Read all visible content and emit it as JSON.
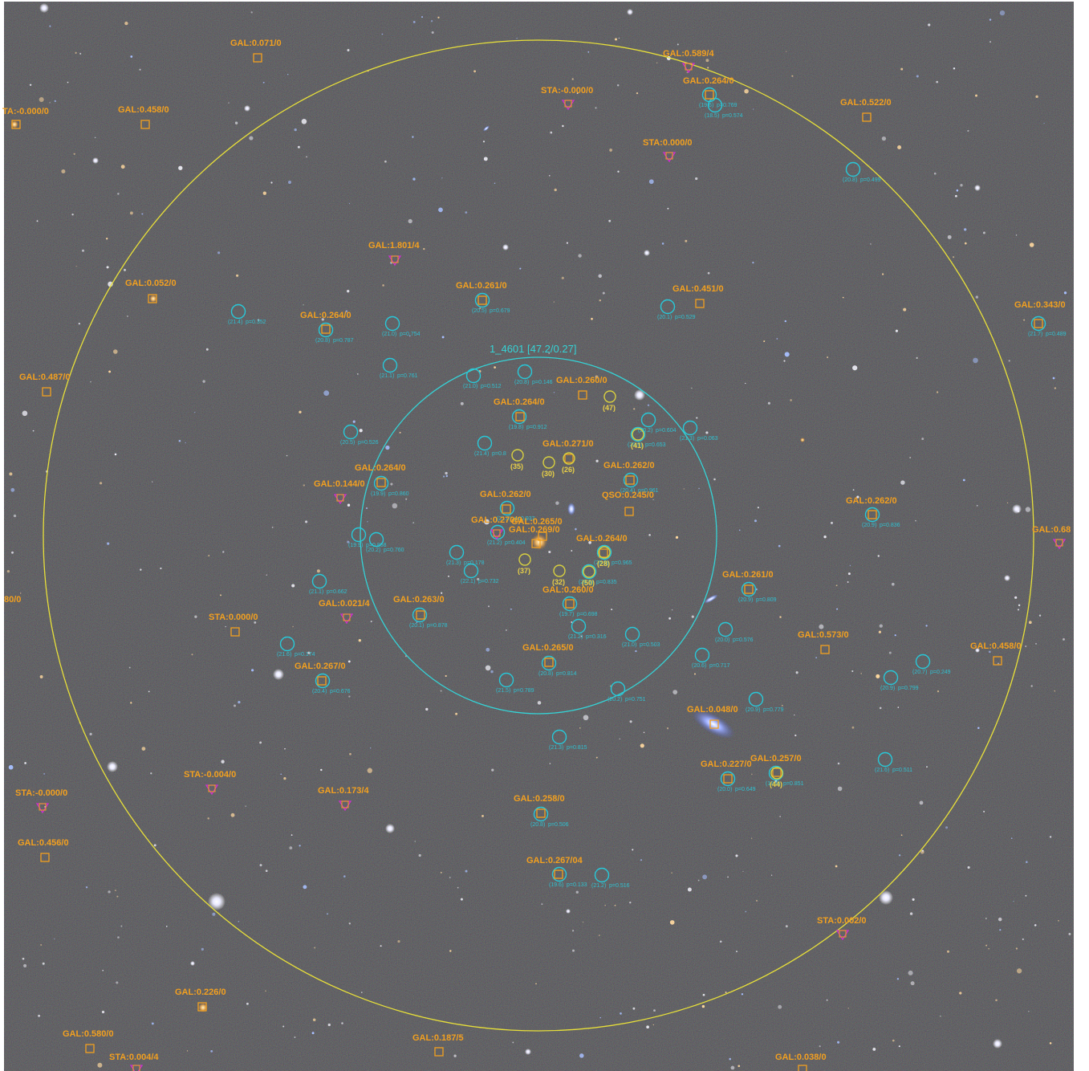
{
  "image": {
    "description_colors": {
      "sky": "#1c1a1e",
      "sky_alt": "#241f22",
      "outer_circle": "#e8e03a",
      "inner_circle": "#35d3d6",
      "spec_label": "#f2a020",
      "star_marker": "#d030d0",
      "member_circle": "#28c8d8",
      "member_text": "#30c0d0",
      "bcg_circle": "#d8d040"
    }
  },
  "cluster": {
    "label": "1_4601 [47.2/0.27]"
  },
  "spec_labels": [
    {
      "text": "GAL:0.071/0"
    },
    {
      "text": "GAL:0.589/4"
    },
    {
      "text": "GAL:0.264/0"
    },
    {
      "text": "STA:-0.000/0"
    },
    {
      "text": "GAL:0.458/0"
    },
    {
      "text": "GAL:0.522/0"
    },
    {
      "text": "TA:-0.000/0"
    },
    {
      "text": "STA:0.000/0"
    },
    {
      "text": "GAL:1.801/4"
    },
    {
      "text": "GAL:0.052/0"
    },
    {
      "text": "GAL:0.261/0"
    },
    {
      "text": "GAL:0.451/0"
    },
    {
      "text": "GAL:0.343/0"
    },
    {
      "text": "GAL:0.264/0"
    },
    {
      "text": "GAL:0.487/0"
    },
    {
      "text": "GAL:0.260/0"
    },
    {
      "text": "GAL:0.264/0"
    },
    {
      "text": "GAL:0.271/0"
    },
    {
      "text": "GAL:0.262/0"
    },
    {
      "text": "GAL:0.264/0"
    },
    {
      "text": "GAL:0.144/0"
    },
    {
      "text": "QSO:0.245/0"
    },
    {
      "text": "GAL:0.262/0"
    },
    {
      "text": "GAL:0.262/0"
    },
    {
      "text": "GAL:0.68"
    },
    {
      "text": "GAL:0.270/0"
    },
    {
      "text": "GAL:0.265/0"
    },
    {
      "text": "GAL:0.269/0"
    },
    {
      "text": "GAL:0.264/0"
    },
    {
      "text": "GAL:0.261/0"
    },
    {
      "text": "GAL:0.263/0"
    },
    {
      "text": "GAL:0.021/4"
    },
    {
      "text": "GAL:0.260/0"
    },
    {
      "text": "STA:0.000/0"
    },
    {
      "text": "GAL:0.573/0"
    },
    {
      "text": "GAL:0.265/0"
    },
    {
      "text": "GAL:0.458/0"
    },
    {
      "text": "GAL:0.267/0"
    },
    {
      "text": "GAL:0.048/0"
    },
    {
      "text": "GAL:0.227/0"
    },
    {
      "text": "GAL:0.257/0"
    },
    {
      "text": "STA:-0.004/0"
    },
    {
      "text": "GAL:0.173/4"
    },
    {
      "text": "STA:-0.000/0"
    },
    {
      "text": "GAL:0.258/0"
    },
    {
      "text": "GAL:0.456/0"
    },
    {
      "text": "GAL:0.267/04"
    },
    {
      "text": "STA:0.002/0"
    },
    {
      "text": "GAL:0.226/0"
    },
    {
      "text": "GAL:0.580/0"
    },
    {
      "text": "STA:0.004/4"
    },
    {
      "text": "GAL:0.187/5"
    },
    {
      "text": "GAL:0.038/0"
    },
    {
      "text": "80/0"
    }
  ],
  "members": [
    {
      "mag": "(21.4)",
      "p": "p=0.352"
    },
    {
      "mag": "(21.0)",
      "p": "p=0.754"
    },
    {
      "mag": "(20.8)",
      "p": "p=0.787"
    },
    {
      "mag": "(20.5)",
      "p": "p=0.679"
    },
    {
      "mag": "(20.1)",
      "p": "p=0.529"
    },
    {
      "mag": "(21.1)",
      "p": "p=0.761"
    },
    {
      "mag": "(21.0)",
      "p": "p=0.512"
    },
    {
      "mag": "(20.8)",
      "p": "p=0.146"
    },
    {
      "mag": "(19.8)",
      "p": "p=0.912"
    },
    {
      "mag": "(20.5)",
      "p": "p=0.526"
    },
    {
      "mag": "(21.4)",
      "p": "p=0.8"
    },
    {
      "mag": "(20.2)",
      "p": "p=0.604"
    },
    {
      "mag": "(21.3)",
      "p": "p=0.063"
    },
    {
      "mag": "(20.9)",
      "p": "p=0.653"
    },
    {
      "mag": "(20.4)",
      "p": "p=0.961"
    },
    {
      "mag": "(19.9)",
      "p": "p=0.860"
    },
    {
      "mag": "(21.0)",
      "p": "p=0.937"
    },
    {
      "mag": "(21.2)",
      "p": "p=0.404"
    },
    {
      "mag": "(19.9)",
      "p": "p=0.858"
    },
    {
      "mag": "(20.2)",
      "p": "p=0.760"
    },
    {
      "mag": "(21.3)",
      "p": "p=0.178"
    },
    {
      "mag": "(22.1)",
      "p": "p=0.732"
    },
    {
      "mag": "(21.1)",
      "p": "p=0.662"
    },
    {
      "mag": "(20.1)",
      "p": "p=0.878"
    },
    {
      "mag": "(19.7)",
      "p": "p=0.698"
    },
    {
      "mag": "(21.2)",
      "p": "p=0.316"
    },
    {
      "mag": "(21.0)",
      "p": "p=0.503"
    },
    {
      "mag": "(20.9)",
      "p": "p=0.809"
    },
    {
      "mag": "(20.0)",
      "p": "p=0.576"
    },
    {
      "mag": "(20.9)",
      "p": "p=0.836"
    },
    {
      "mag": "(21.6)",
      "p": "p=0.174"
    },
    {
      "mag": "(20.4)",
      "p": "p=0.676"
    },
    {
      "mag": "(20.8)",
      "p": "p=0.814"
    },
    {
      "mag": "(20.6)",
      "p": "p=0.717"
    },
    {
      "mag": "(21.5)",
      "p": "p=0.789"
    },
    {
      "mag": "(20.2)",
      "p": "p=0.751"
    },
    {
      "mag": "(20.7)",
      "p": "p=0.249"
    },
    {
      "mag": "(20.9)",
      "p": "p=0.799"
    },
    {
      "mag": "(20.9)",
      "p": "p=0.779"
    },
    {
      "mag": "(21.3)",
      "p": "p=0.815"
    },
    {
      "mag": "(20.0)",
      "p": "p=0.649"
    },
    {
      "mag": "(19.9)",
      "p": "p=0.851"
    },
    {
      "mag": "(21.6)",
      "p": "p=0.511"
    },
    {
      "mag": "(20.8)",
      "p": "p=0.506"
    },
    {
      "mag": "(19.6)",
      "p": "p=0.133"
    },
    {
      "mag": "(21.2)",
      "p": "p=0.516"
    },
    {
      "mag": "(19.6)",
      "p": "p=0.769"
    },
    {
      "mag": "(18.5)",
      "p": "p=0.574"
    },
    {
      "mag": "(20.8)",
      "p": "p=0.499"
    },
    {
      "mag": "(21.7)",
      "p": "p=0.489"
    },
    {
      "mag": "(20.9)",
      "p": "p=0.965"
    },
    {
      "mag": "(20.9)",
      "p": "p=0.835"
    }
  ],
  "bcg_ranks": [
    {
      "text": "(47)"
    },
    {
      "text": "(41)"
    },
    {
      "text": "(35)"
    },
    {
      "text": "(30)"
    },
    {
      "text": "(26)"
    },
    {
      "text": "(37)"
    },
    {
      "text": "(32)"
    },
    {
      "text": "(50)"
    },
    {
      "text": "(28)"
    },
    {
      "text": "(44)"
    }
  ]
}
